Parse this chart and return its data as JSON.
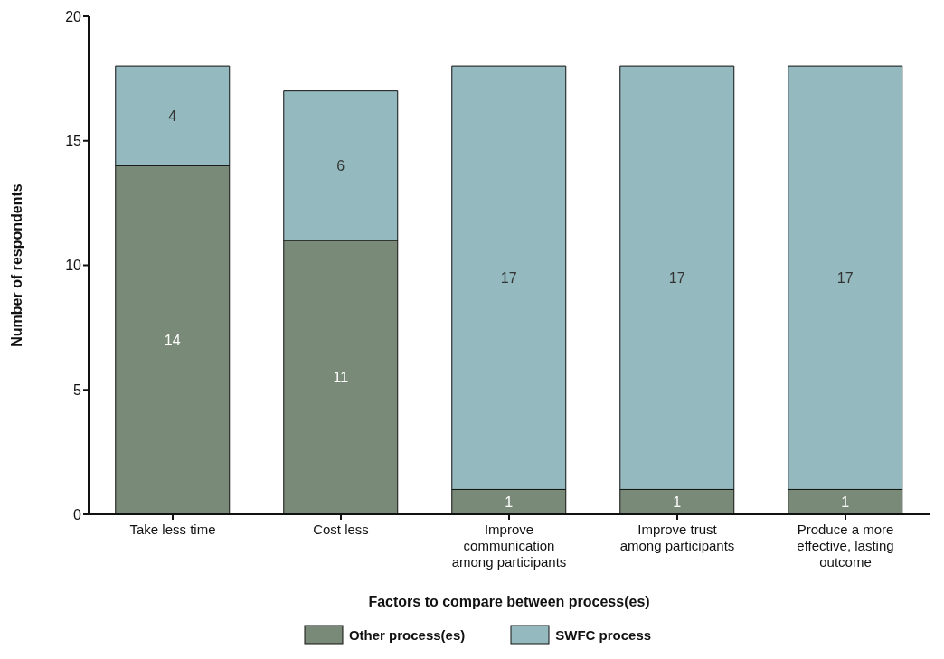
{
  "chart_data": {
    "type": "bar",
    "stacked": true,
    "categories": [
      "Take less time",
      "Cost less",
      "Improve communication among participants",
      "Improve trust among participants",
      "Produce a more effective, lasting outcome"
    ],
    "series": [
      {
        "name": "Other process(es)",
        "color": "#7a8a78",
        "values": [
          14,
          11,
          1,
          1,
          1
        ]
      },
      {
        "name": "SWFC process",
        "color": "#94babf",
        "values": [
          4,
          6,
          17,
          17,
          17
        ]
      }
    ],
    "xlabel": "Factors to compare between process(es)",
    "ylabel": "Number of respondents",
    "ylim": [
      0,
      20
    ],
    "yticks": [
      0,
      5,
      10,
      15,
      20
    ],
    "data_labels": true,
    "legend": "bottom",
    "grid": false
  }
}
